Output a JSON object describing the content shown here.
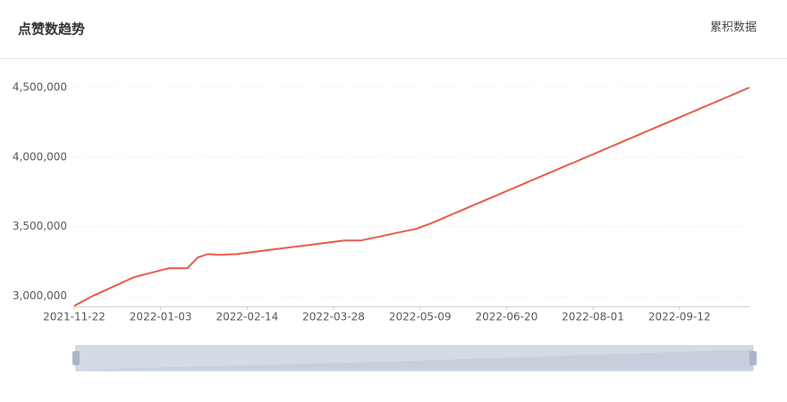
{
  "header": {
    "title": "点赞数趋势",
    "action": "累积数据"
  },
  "chart_data": {
    "type": "line",
    "x": [
      "2021-11-22",
      "2021-12-01",
      "2021-12-21",
      "2022-01-07",
      "2022-01-16",
      "2022-01-21",
      "2022-01-26",
      "2022-01-31",
      "2022-02-09",
      "2022-04-02",
      "2022-04-10",
      "2022-05-07",
      "2022-05-14",
      "2022-10-16"
    ],
    "series": [
      {
        "name": "点赞数",
        "color": "#e8584a",
        "values": [
          2929000,
          3000000,
          3135000,
          3200000,
          3200000,
          3277000,
          3302000,
          3296000,
          3302000,
          3399000,
          3399000,
          3483000,
          3521000,
          4500000
        ]
      }
    ],
    "xlim": [
      "2021-11-22",
      "2022-10-16"
    ],
    "xticks": [
      "2021-11-22",
      "2022-01-03",
      "2022-02-14",
      "2022-03-28",
      "2022-05-09",
      "2022-06-20",
      "2022-08-01",
      "2022-09-12"
    ],
    "ylim": [
      2925000,
      4500000
    ],
    "yticks": [
      {
        "value": 3000000,
        "label": "3,000,000"
      },
      {
        "value": 3500000,
        "label": "3,500,000"
      },
      {
        "value": 4000000,
        "label": "4,000,000"
      },
      {
        "value": 4500000,
        "label": "4,500,000"
      }
    ],
    "grid": true
  }
}
